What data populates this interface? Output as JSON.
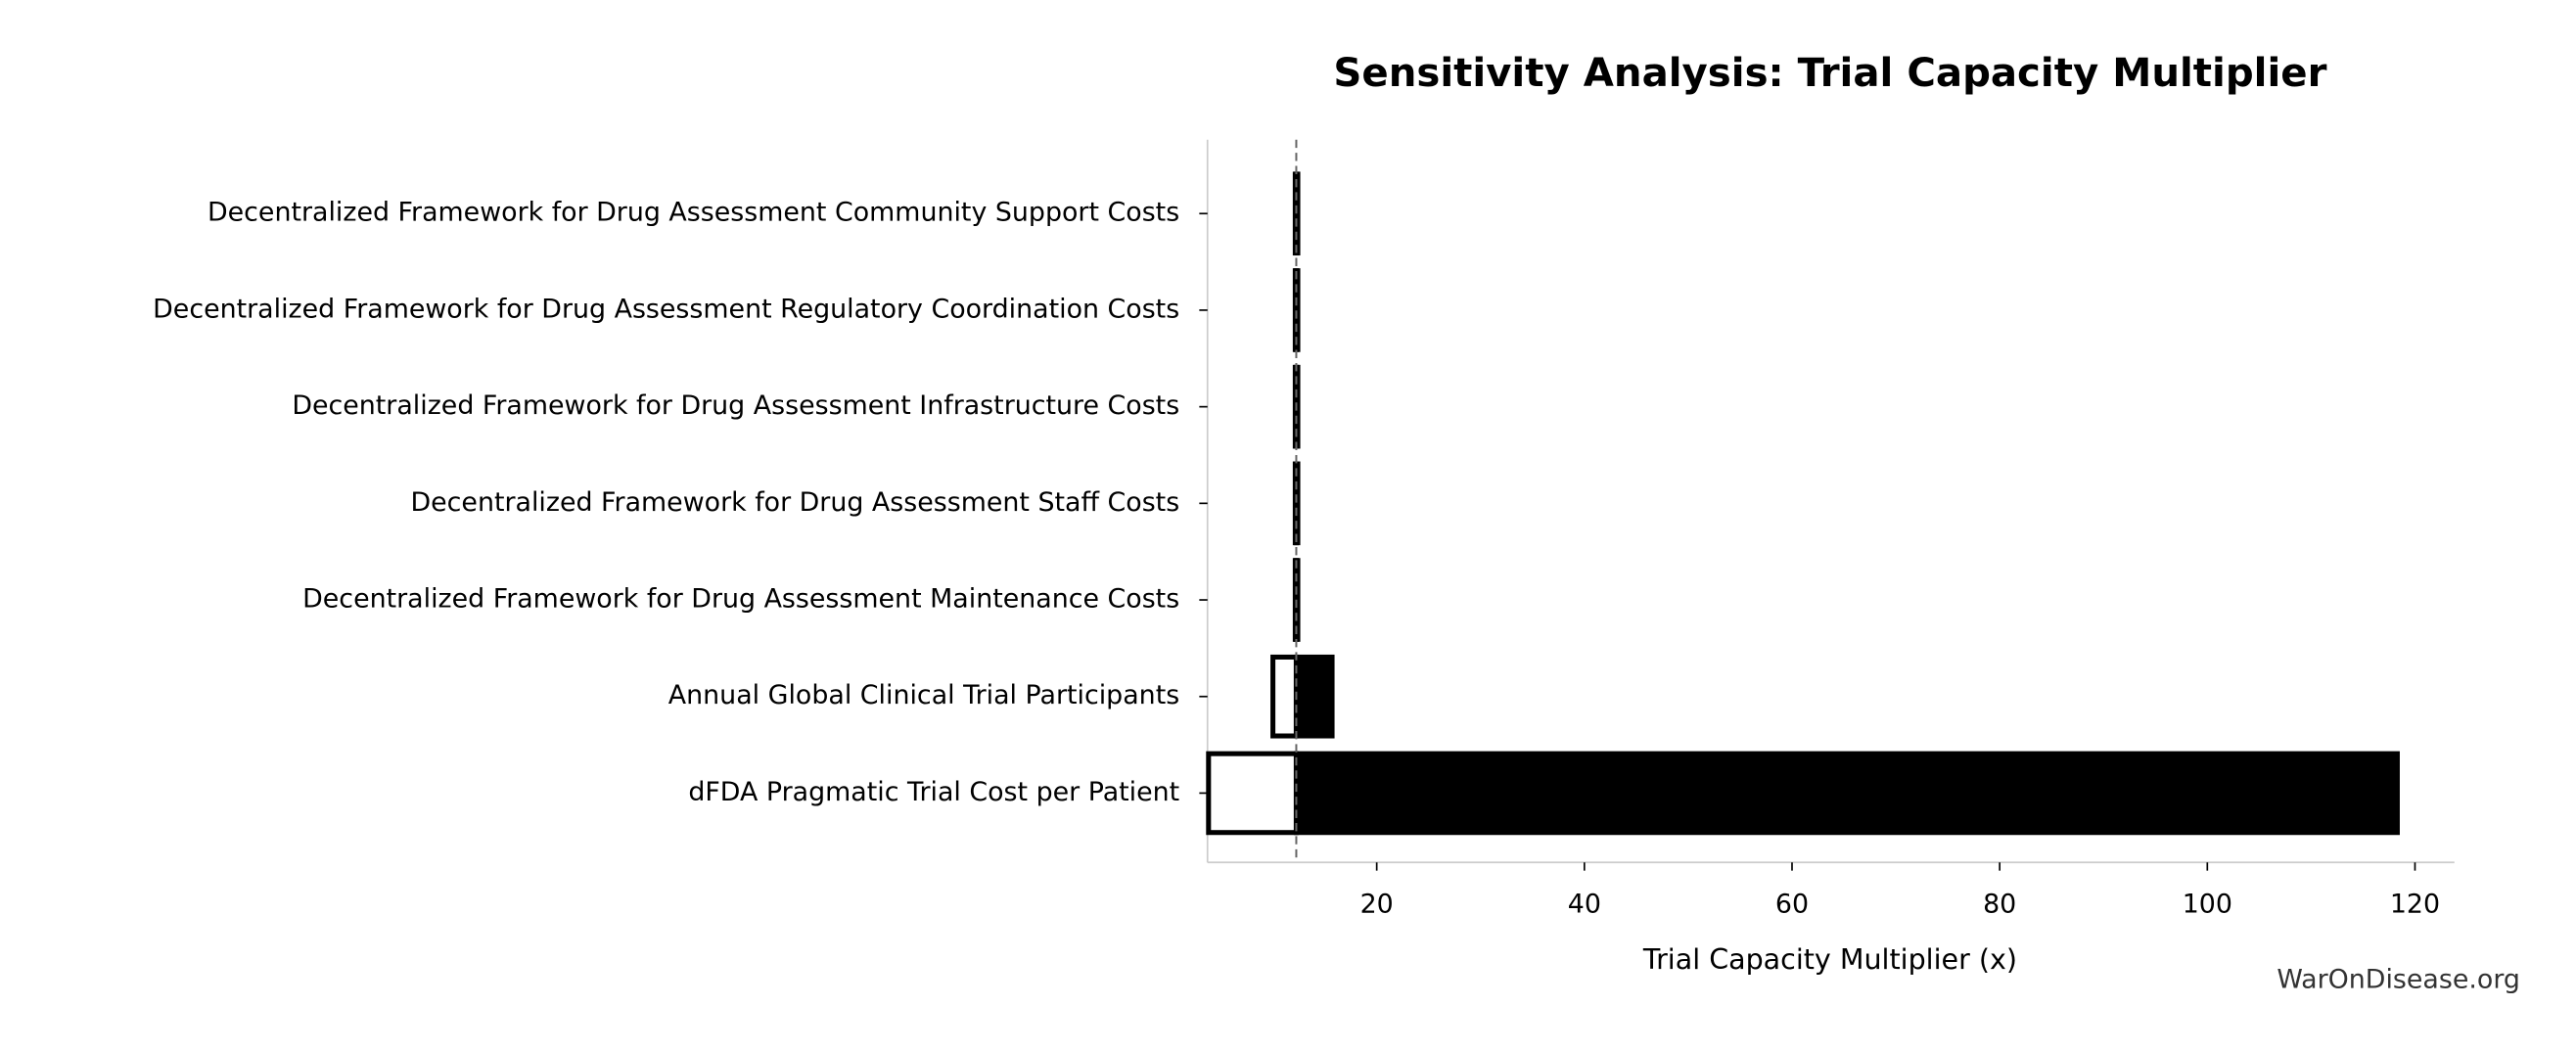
{
  "chart_data": {
    "type": "tornado",
    "title": "Sensitivity Analysis: Trial Capacity Multiplier",
    "x_label": "Trial Capacity Multiplier (x)",
    "watermark": "WarOnDisease.org",
    "categories": [
      "Decentralized Framework for Drug Assessment Community Support Costs",
      "Decentralized Framework for Drug Assessment Regulatory Coordination Costs",
      "Decentralized Framework for Drug Assessment Infrastructure Costs",
      "Decentralized Framework for Drug Assessment Staff Costs",
      "Decentralized Framework for Drug Assessment Maintenance Costs",
      "Annual Global Clinical Trial Participants",
      "dFDA Pragmatic Trial Cost per Patient"
    ],
    "baseline": 12.25,
    "low_values": [
      12.15,
      12.15,
      12.15,
      12.15,
      12.15,
      10.0,
      3.8
    ],
    "high_values": [
      12.4,
      12.4,
      12.4,
      12.4,
      12.4,
      15.7,
      118.3
    ],
    "low_color": "#ffffff",
    "high_color": "#000000",
    "xlim": [
      3.7,
      123.8
    ],
    "xticks": [
      20,
      40,
      60,
      80,
      100,
      120
    ]
  }
}
